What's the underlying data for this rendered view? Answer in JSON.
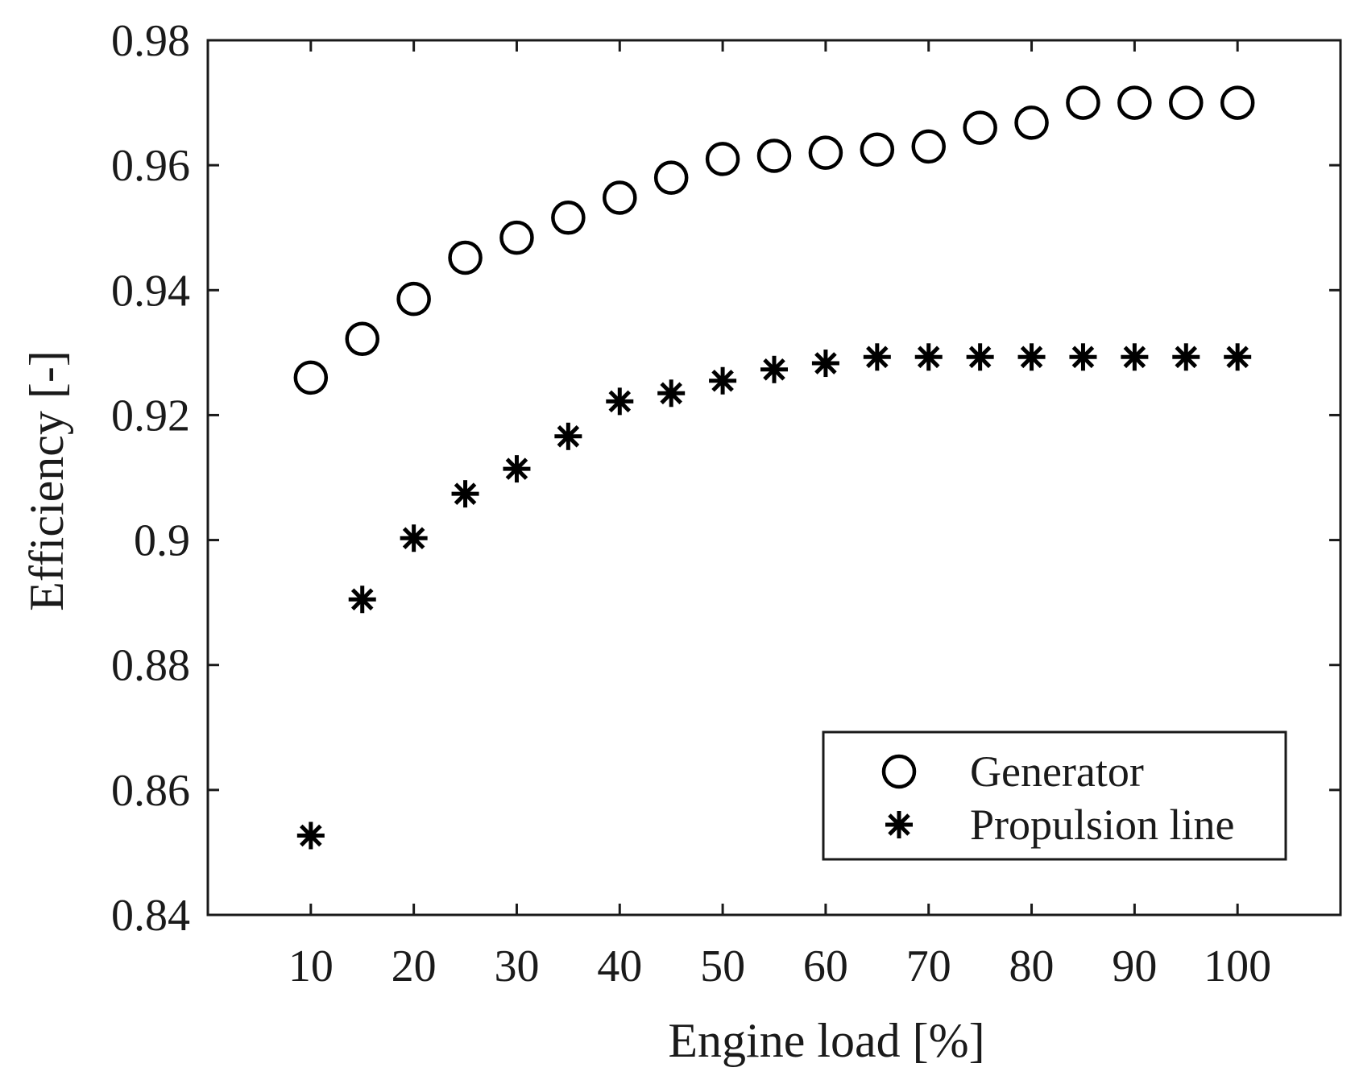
{
  "chart_data": {
    "type": "scatter",
    "xlabel": "Engine load [%]",
    "ylabel": "Efficiency [-]",
    "xlim": [
      0,
      110
    ],
    "ylim": [
      0.84,
      0.98
    ],
    "xticks": [
      10,
      20,
      30,
      40,
      50,
      60,
      70,
      80,
      90,
      100
    ],
    "xtick_labels": [
      "10",
      "20",
      "30",
      "40",
      "50",
      "60",
      "70",
      "80",
      "90",
      "100"
    ],
    "yticks": [
      0.84,
      0.86,
      0.88,
      0.9,
      0.92,
      0.94,
      0.96,
      0.98
    ],
    "ytick_labels": [
      "0.84",
      "0.86",
      "0.88",
      "0.9",
      "0.92",
      "0.94",
      "0.96",
      "0.98"
    ],
    "grid": false,
    "legend_position": "bottom-right",
    "series": [
      {
        "name": "Generator",
        "marker": "circle",
        "x": [
          10,
          15,
          20,
          25,
          30,
          35,
          40,
          45,
          50,
          55,
          60,
          65,
          70,
          75,
          80,
          85,
          90,
          95,
          100
        ],
        "y": [
          0.926,
          0.9322,
          0.9386,
          0.9452,
          0.9484,
          0.9516,
          0.9548,
          0.958,
          0.961,
          0.9615,
          0.962,
          0.9625,
          0.963,
          0.966,
          0.9668,
          0.97,
          0.97,
          0.97,
          0.97
        ]
      },
      {
        "name": "Propulsion line",
        "marker": "asterisk",
        "x": [
          10,
          15,
          20,
          25,
          30,
          35,
          40,
          45,
          50,
          55,
          60,
          65,
          70,
          75,
          80,
          85,
          90,
          95,
          100
        ],
        "y": [
          0.8527,
          0.8905,
          0.9003,
          0.9074,
          0.9114,
          0.9166,
          0.9222,
          0.9235,
          0.9255,
          0.9273,
          0.9283,
          0.9293,
          0.9293,
          0.9293,
          0.9293,
          0.9293,
          0.9293,
          0.9293,
          0.9293
        ]
      }
    ]
  }
}
